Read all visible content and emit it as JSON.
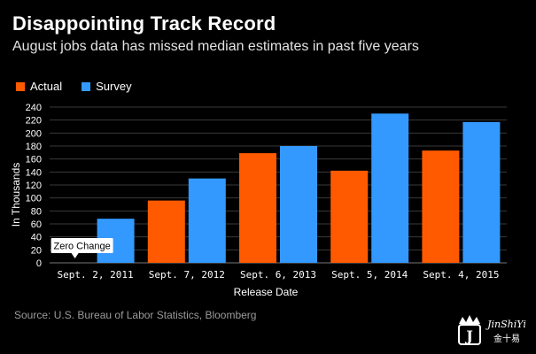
{
  "header": {
    "title": "Disappointing Track Record",
    "subtitle": "August jobs data has missed median estimates in past five years"
  },
  "legend": {
    "actual_label": "Actual",
    "survey_label": "Survey"
  },
  "footer": {
    "source": "Source: U.S. Bureau of Labor Statistics, Bloomberg"
  },
  "watermark": {
    "text": "JinShiYi",
    "chinese": "金十易"
  },
  "colors": {
    "actual": "#ff5a00",
    "survey": "#3399ff",
    "background": "#000000",
    "grid": "#3a3a3a",
    "tick": "#ffffff"
  },
  "chart_data": {
    "type": "bar",
    "title": "Disappointing Track Record",
    "xlabel": "Release Date",
    "ylabel": "In Thousands",
    "ylim": [
      0,
      240
    ],
    "yticks": [
      0,
      20,
      40,
      60,
      80,
      100,
      120,
      140,
      160,
      180,
      200,
      220,
      240
    ],
    "categories": [
      "Sept. 2, 2011",
      "Sept. 7, 2012",
      "Sept. 6, 2013",
      "Sept. 5, 2014",
      "Sept. 4, 2015"
    ],
    "series": [
      {
        "name": "Actual",
        "values": [
          0,
          96,
          169,
          142,
          173
        ]
      },
      {
        "name": "Survey",
        "values": [
          68,
          130,
          180,
          230,
          217
        ]
      }
    ],
    "annotations": [
      {
        "text": "Zero Change",
        "category": "Sept. 2, 2011",
        "series": "Actual"
      }
    ],
    "grid": true,
    "legend_position": "top-left"
  }
}
